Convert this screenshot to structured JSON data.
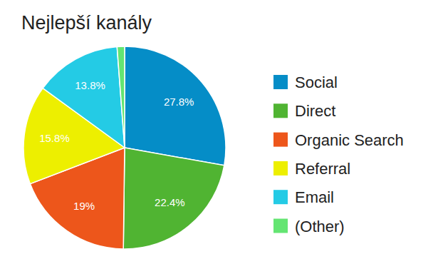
{
  "chart_data": {
    "type": "pie",
    "title": "Nejlepší kanály",
    "categories": [
      "Social",
      "Direct",
      "Organic Search",
      "Referral",
      "Email",
      "(Other)"
    ],
    "values": [
      27.8,
      22.4,
      19,
      15.8,
      13.8,
      1.2
    ],
    "value_labels": [
      "27.8%",
      "22.4%",
      "19%",
      "15.8%",
      "13.8%",
      null
    ],
    "colors": [
      "#058dc7",
      "#50b432",
      "#ed561b",
      "#edef00",
      "#24cbe5",
      "#64e572"
    ],
    "data_labels": true,
    "legend": "right"
  }
}
